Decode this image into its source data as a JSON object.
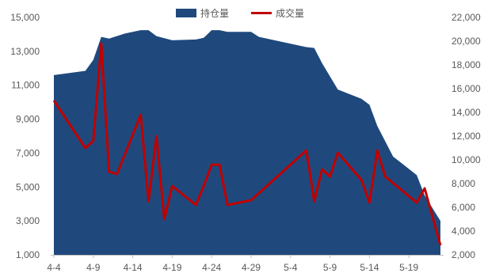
{
  "chart_data": {
    "type": "area+line",
    "grid": false,
    "legend_position": "top-center",
    "x_tick_labels": [
      "4-4",
      "4-9",
      "4-14",
      "4-19",
      "4-24",
      "4-29",
      "5-4",
      "5-9",
      "5-14",
      "5-19"
    ],
    "x_tick_positions": [
      0,
      5,
      10,
      15,
      20,
      25,
      30,
      35,
      40,
      45
    ],
    "x_range": [
      0,
      49
    ],
    "y_left": {
      "range": [
        1000,
        15000
      ],
      "ticks": [
        1000,
        3000,
        5000,
        7000,
        9000,
        11000,
        13000,
        15000
      ]
    },
    "y_right": {
      "range": [
        2000,
        22000
      ],
      "ticks": [
        2000,
        4000,
        6000,
        8000,
        10000,
        12000,
        14000,
        16000,
        18000,
        20000,
        22000
      ]
    },
    "series": [
      {
        "name": "持仓量",
        "type": "area",
        "axis": "left",
        "color": "#1F497D",
        "points": [
          [
            0,
            11600
          ],
          [
            4,
            11850
          ],
          [
            5,
            12500
          ],
          [
            6,
            13850
          ],
          [
            7,
            13750
          ],
          [
            9,
            14050
          ],
          [
            11,
            14250
          ],
          [
            12,
            14250
          ],
          [
            13,
            13900
          ],
          [
            15,
            13650
          ],
          [
            18,
            13700
          ],
          [
            19,
            13800
          ],
          [
            20,
            14250
          ],
          [
            21,
            14250
          ],
          [
            22,
            14150
          ],
          [
            25,
            14150
          ],
          [
            26,
            13850
          ],
          [
            32,
            13250
          ],
          [
            33,
            13200
          ],
          [
            34,
            12300
          ],
          [
            36,
            10750
          ],
          [
            39,
            10200
          ],
          [
            40,
            9850
          ],
          [
            41,
            8600
          ],
          [
            43,
            6800
          ],
          [
            46,
            5700
          ],
          [
            47,
            4500
          ],
          [
            49,
            3000
          ]
        ]
      },
      {
        "name": "成交量",
        "type": "line",
        "axis": "right",
        "color": "#C00000",
        "points": [
          [
            0,
            15000
          ],
          [
            4,
            11000
          ],
          [
            5,
            11600
          ],
          [
            6,
            19800
          ],
          [
            7,
            9000
          ],
          [
            8,
            8800
          ],
          [
            11,
            13800
          ],
          [
            12,
            6500
          ],
          [
            13,
            12000
          ],
          [
            14,
            5000
          ],
          [
            15,
            7800
          ],
          [
            18,
            6200
          ],
          [
            19,
            7800
          ],
          [
            20,
            9600
          ],
          [
            21,
            9600
          ],
          [
            22,
            6200
          ],
          [
            25,
            6600
          ],
          [
            32,
            10800
          ],
          [
            33,
            6500
          ],
          [
            34,
            9200
          ],
          [
            35,
            8600
          ],
          [
            36,
            10600
          ],
          [
            39,
            8300
          ],
          [
            40,
            6400
          ],
          [
            41,
            10800
          ],
          [
            42,
            8600
          ],
          [
            46,
            6400
          ],
          [
            47,
            7600
          ],
          [
            49,
            2800
          ]
        ]
      }
    ]
  }
}
